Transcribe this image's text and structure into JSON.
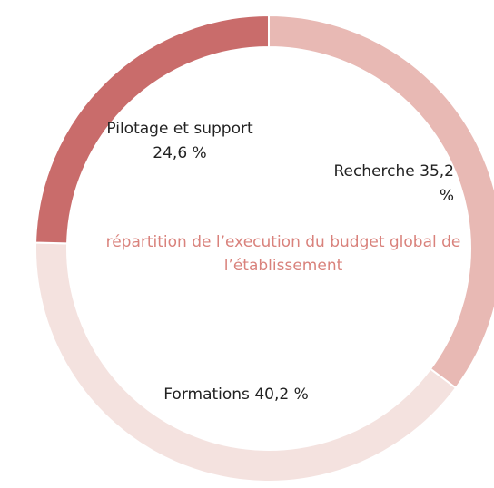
{
  "chart_data": {
    "type": "donut",
    "title": "répartition de l’execution du budget global de l’établissement",
    "categories": [
      "Recherche",
      "Formations",
      "Pilotage et support"
    ],
    "values": [
      35.2,
      40.2,
      24.6
    ],
    "value_labels": [
      "35,2 %",
      "40,2 %",
      "24,6 %"
    ],
    "colors": [
      "#e8b9b4",
      "#f4e2df",
      "#c96c6b"
    ]
  }
}
